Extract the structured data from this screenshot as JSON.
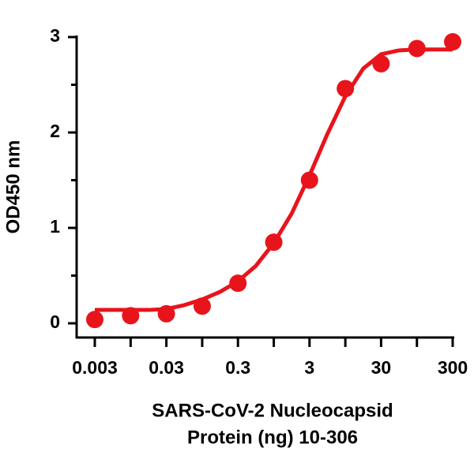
{
  "chart_data": {
    "type": "scatter",
    "xlabel": [
      "SARS-CoV-2 Nucleocapsid",
      "Protein (ng) 10-306"
    ],
    "ylabel": "OD450 nm",
    "xscale": "log",
    "xlim": [
      0.003,
      300
    ],
    "xticks": [
      0.003,
      0.03,
      0.3,
      3,
      30,
      300
    ],
    "xminor_ticks": [
      0.0095,
      0.095,
      0.95,
      9.5,
      95
    ],
    "ylim": [
      0,
      3
    ],
    "yticks": [
      0,
      1,
      2,
      3
    ],
    "yminor_ticks": [
      0.5,
      1.5,
      2.5
    ],
    "color": "#e8141c",
    "x": [
      0.003,
      0.0095,
      0.03,
      0.095,
      0.3,
      0.95,
      3,
      9.5,
      30,
      95,
      300
    ],
    "values": [
      0.04,
      0.08,
      0.1,
      0.18,
      0.42,
      0.85,
      1.5,
      2.46,
      2.72,
      2.88,
      2.95
    ],
    "fit": {
      "x": [
        0.003,
        0.0053,
        0.0095,
        0.0169,
        0.03,
        0.053,
        0.095,
        0.169,
        0.3,
        0.53,
        0.95,
        1.69,
        3,
        5.3,
        9.5,
        16.9,
        30,
        53,
        95,
        169,
        300
      ],
      "values": [
        0.14,
        0.14,
        0.14,
        0.14,
        0.15,
        0.19,
        0.25,
        0.33,
        0.44,
        0.6,
        0.84,
        1.15,
        1.55,
        1.98,
        2.38,
        2.67,
        2.82,
        2.86,
        2.87,
        2.87,
        2.87
      ]
    }
  }
}
